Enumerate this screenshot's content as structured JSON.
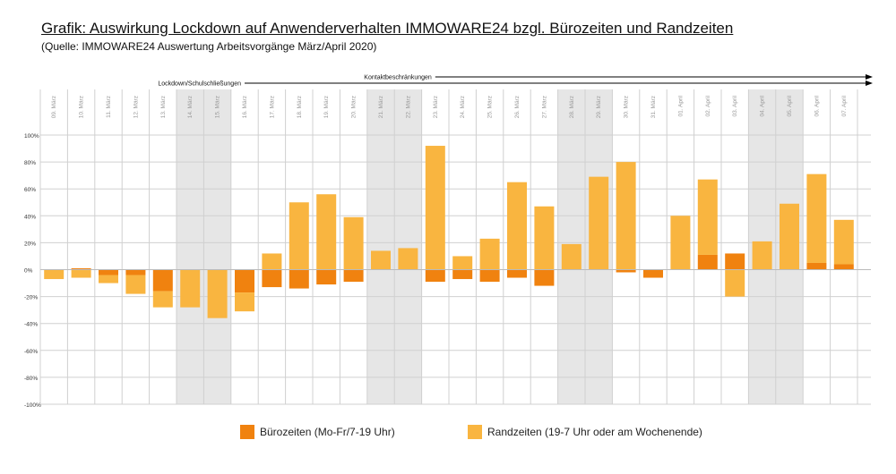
{
  "title": "Grafik: Auswirkung Lockdown auf Anwenderverhalten IMMOWARE24 bzgl. Bürozeiten und Randzeiten",
  "subtitle": "(Quelle: IMMOWARE24 Auswertung Arbeitsvorgänge März/April 2020)",
  "colors": {
    "buero": "#F0820F",
    "rand": "#F9B540",
    "shade": "#E6E6E6",
    "grid": "#D0D0D0"
  },
  "annotations": [
    {
      "label": "Kontaktbeschränkungen",
      "from_category": "23. März"
    },
    {
      "label": "Lockdown/Schulschließungen",
      "from_category": "16. März"
    }
  ],
  "chart_data": {
    "type": "bar",
    "stacked": true,
    "categories": [
      "09. März",
      "10. März",
      "11. März",
      "12. März",
      "13. März",
      "14. März",
      "15. März",
      "16. März",
      "17. März",
      "18. März",
      "19. März",
      "20. März",
      "21. März",
      "22. März",
      "23. März",
      "24. März",
      "25. März",
      "26. März",
      "27. März",
      "28. März",
      "29. März",
      "30. März",
      "31. März",
      "01. April",
      "02. April",
      "03. April",
      "04. April",
      "05. April",
      "06. April",
      "07. April"
    ],
    "weekend_categories": [
      "14. März",
      "15. März",
      "21. März",
      "22. März",
      "28. März",
      "29. März",
      "04. April",
      "05. April"
    ],
    "series": [
      {
        "name": "Bürozeiten (Mo-Fr/7-19 Uhr)",
        "color": "#F0820F",
        "values": [
          0,
          1,
          -4,
          -4,
          -16,
          0,
          0,
          -17,
          -13,
          -14,
          -11,
          -9,
          0,
          0,
          -9,
          -7,
          -9,
          -6,
          -12,
          0,
          0,
          -2,
          -6,
          0,
          11,
          12,
          0,
          0,
          5,
          4
        ]
      },
      {
        "name": "Randzeiten (19-7 Uhr oder am Wochenende)",
        "color": "#F9B540",
        "values": [
          -7,
          -6,
          -6,
          -14,
          -12,
          -28,
          -36,
          -14,
          12,
          50,
          56,
          39,
          14,
          16,
          92,
          10,
          23,
          65,
          47,
          19,
          69,
          80,
          0,
          40,
          56,
          -20,
          21,
          49,
          66,
          33
        ]
      }
    ],
    "yticks": [
      "100%",
      "80%",
      "60%",
      "40%",
      "20%",
      "0%",
      "-20%",
      "-40%",
      "-60%",
      "-80%",
      "-100%"
    ],
    "ylim": [
      -100,
      100
    ],
    "grid": true,
    "legend_position": "bottom"
  }
}
